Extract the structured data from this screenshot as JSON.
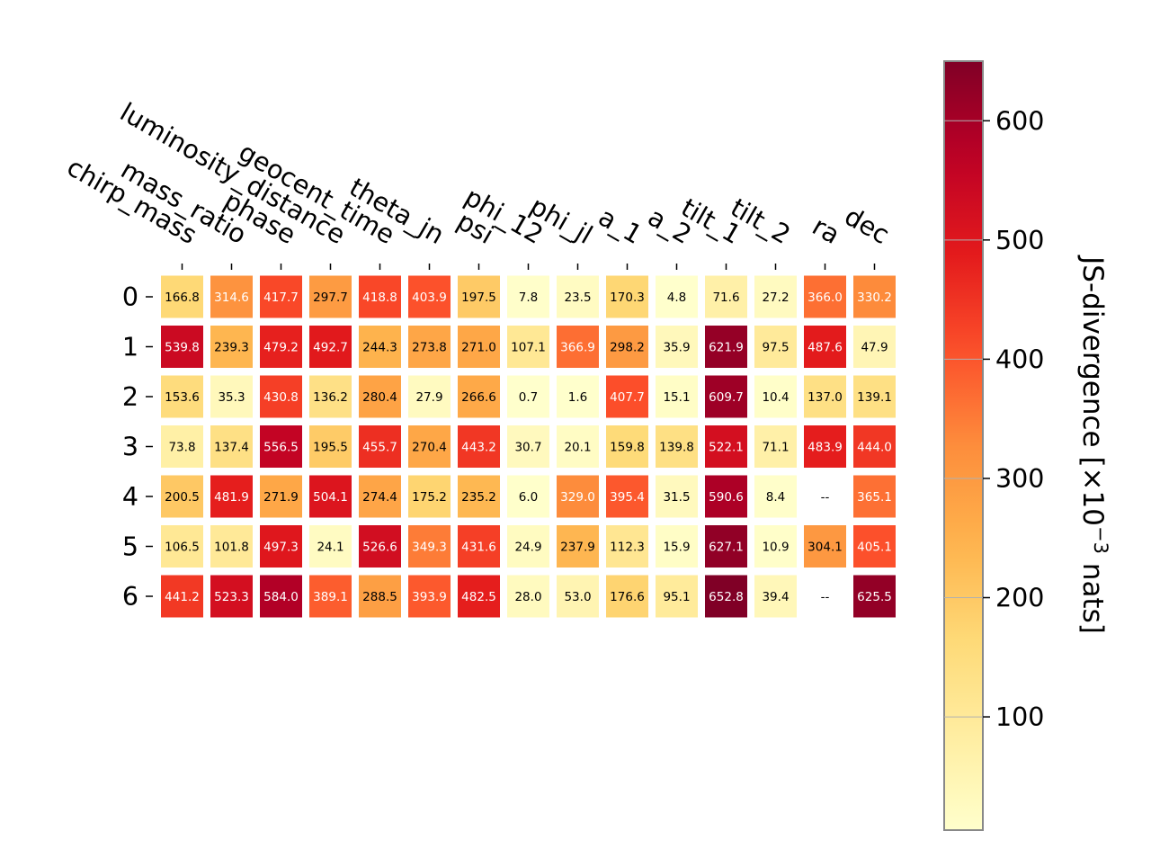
{
  "chart_data": {
    "type": "heatmap",
    "colormap": "YlOrRd",
    "colorbar_label_parts": [
      "JS-divergence [×10",
      "−3",
      " nats]"
    ],
    "colorbar_range": [
      5,
      650
    ],
    "colorbar_ticks": [
      100,
      200,
      300,
      400,
      500,
      600
    ],
    "missing_label": "--",
    "x_labels": [
      "chirp_mass",
      "mass_ratio",
      "phase",
      "luminosity_distance",
      "geocent_time",
      "theta_jn",
      "psi",
      "phi_12",
      "phi_jl",
      "a_1",
      "a_2",
      "tilt_1",
      "tilt_2",
      "ra",
      "dec"
    ],
    "y_labels": [
      "0",
      "1",
      "2",
      "3",
      "4",
      "5",
      "6"
    ],
    "values": [
      [
        166.8,
        314.6,
        417.7,
        297.7,
        418.8,
        403.9,
        197.5,
        7.8,
        23.5,
        170.3,
        4.8,
        71.6,
        27.2,
        366.0,
        330.2
      ],
      [
        539.8,
        239.3,
        479.2,
        492.7,
        244.3,
        273.8,
        271.0,
        107.1,
        366.9,
        298.2,
        35.9,
        621.9,
        97.5,
        487.6,
        47.9
      ],
      [
        153.6,
        35.3,
        430.8,
        136.2,
        280.4,
        27.9,
        266.6,
        0.7,
        1.6,
        407.7,
        15.1,
        609.7,
        10.4,
        137.0,
        139.1
      ],
      [
        73.8,
        137.4,
        556.5,
        195.5,
        455.7,
        270.4,
        443.2,
        30.7,
        20.1,
        159.8,
        139.8,
        522.1,
        71.1,
        483.9,
        444.0
      ],
      [
        200.5,
        481.9,
        271.9,
        504.1,
        274.4,
        175.2,
        235.2,
        6.0,
        329.0,
        395.4,
        31.5,
        590.6,
        8.4,
        null,
        365.1
      ],
      [
        106.5,
        101.8,
        497.3,
        24.1,
        526.6,
        349.3,
        431.6,
        24.9,
        237.9,
        112.3,
        15.9,
        627.1,
        10.9,
        304.1,
        405.1
      ],
      [
        441.2,
        523.3,
        584.0,
        389.1,
        288.5,
        393.9,
        482.5,
        28.0,
        53.0,
        176.6,
        95.1,
        652.8,
        39.4,
        null,
        625.5
      ]
    ],
    "legend": "colorbar-right",
    "grid": false
  }
}
